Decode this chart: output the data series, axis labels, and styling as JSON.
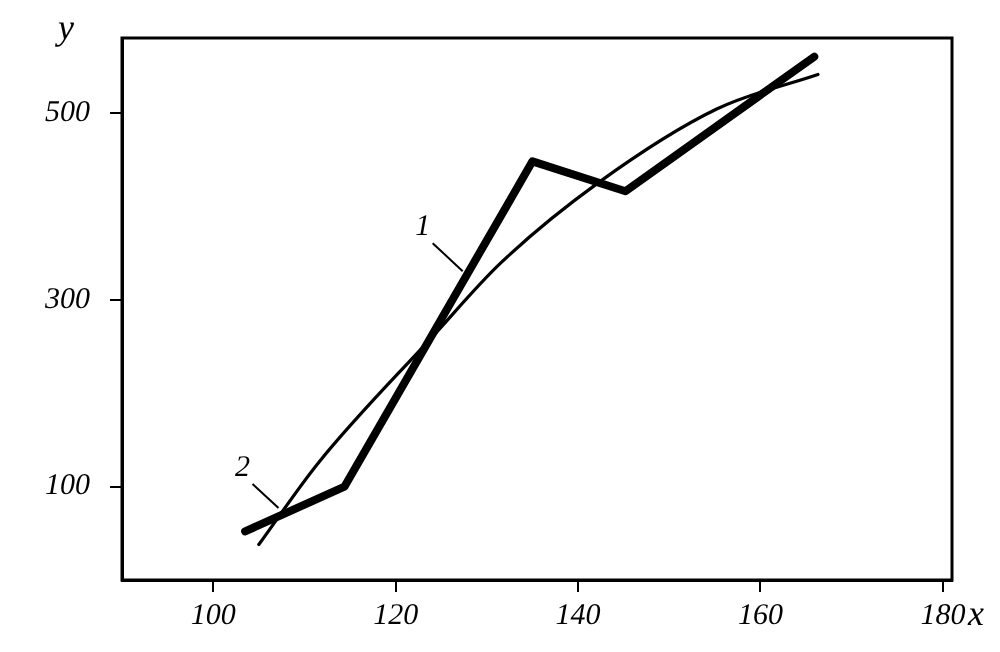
{
  "chart_data": {
    "type": "line",
    "xlabel": "x",
    "ylabel": "y",
    "xlim": [
      90,
      181
    ],
    "xticks": [
      100,
      120,
      140,
      160,
      180
    ],
    "ylim": [
      0,
      580
    ],
    "yticks": [
      100,
      300,
      500
    ],
    "grid": false,
    "legend": false,
    "marker": "none",
    "line_style": "solid",
    "series": [
      {
        "name": "1",
        "color": "#000000",
        "x": [
          103.5,
          114.4,
          135,
          145.2,
          165.9
        ],
        "values": [
          52,
          100,
          448,
          416,
          560
        ]
      },
      {
        "name": "2",
        "color": "#000000",
        "x": [
          105,
          111.5,
          124.1,
          131.5,
          142.2,
          155.2,
          166.3
        ],
        "values": [
          38,
          125,
          261,
          339,
          425,
          504,
          541
        ]
      }
    ]
  }
}
